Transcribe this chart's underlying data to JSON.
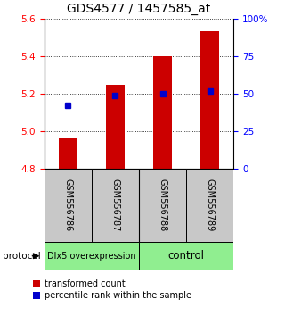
{
  "title": "GDS4577 / 1457585_at",
  "samples": [
    "GSM556786",
    "GSM556787",
    "GSM556788",
    "GSM556789"
  ],
  "bar_tops": [
    4.964,
    5.25,
    5.4,
    5.535
  ],
  "bar_bottom": 4.8,
  "blue_values": [
    5.14,
    5.19,
    5.2,
    5.215
  ],
  "ylim_left": [
    4.8,
    5.6
  ],
  "ylim_right": [
    0,
    100
  ],
  "yticks_left": [
    4.8,
    5.0,
    5.2,
    5.4,
    5.6
  ],
  "yticks_right": [
    0,
    25,
    50,
    75,
    100
  ],
  "ytick_labels_right": [
    "0",
    "25",
    "50",
    "75",
    "100%"
  ],
  "group1_label": "Dlx5 overexpression",
  "group2_label": "control",
  "group_color": "#90ee90",
  "bar_color": "#cc0000",
  "blue_color": "#0000cc",
  "bg_color": "#ffffff",
  "gray_box": "#c8c8c8",
  "legend_red_label": "transformed count",
  "legend_blue_label": "percentile rank within the sample",
  "protocol_label": "protocol",
  "title_fontsize": 10,
  "tick_fontsize": 7.5,
  "sample_fontsize": 7,
  "group_fontsize": 7,
  "legend_fontsize": 7
}
